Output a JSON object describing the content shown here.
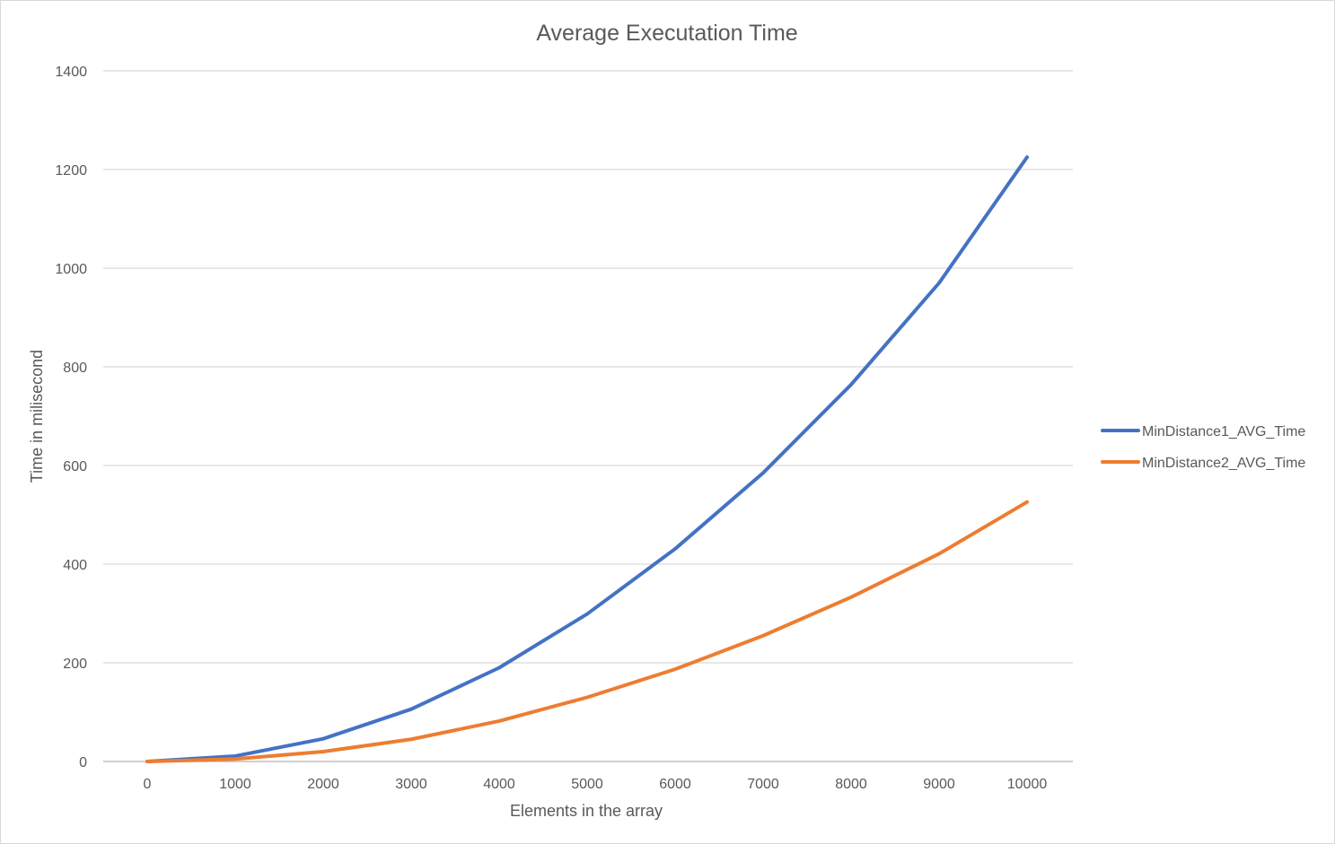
{
  "chart_data": {
    "type": "line",
    "title": "Average Executation Time",
    "xlabel": "Elements in the array",
    "ylabel": "Time in milisecond",
    "x": [
      0,
      1000,
      2000,
      3000,
      4000,
      5000,
      6000,
      7000,
      8000,
      9000,
      10000
    ],
    "x_tick_labels": [
      "0",
      "1000",
      "2000",
      "3000",
      "4000",
      "5000",
      "6000",
      "7000",
      "8000",
      "9000",
      "10000"
    ],
    "y_ticks": [
      0,
      200,
      400,
      600,
      800,
      1000,
      1200,
      1400
    ],
    "ylim": [
      0,
      1400
    ],
    "grid": true,
    "legend_position": "right",
    "series": [
      {
        "name": "MinDistance1_AVG_Time",
        "color": "#4472C4",
        "values": [
          0,
          11,
          46,
          106,
          190,
          299,
          431,
          585,
          764,
          970,
          1225
        ]
      },
      {
        "name": "MinDistance2_AVG_Time",
        "color": "#ED7D31",
        "values": [
          0,
          5,
          20,
          45,
          82,
          130,
          187,
          255,
          333,
          421,
          526
        ]
      }
    ]
  }
}
